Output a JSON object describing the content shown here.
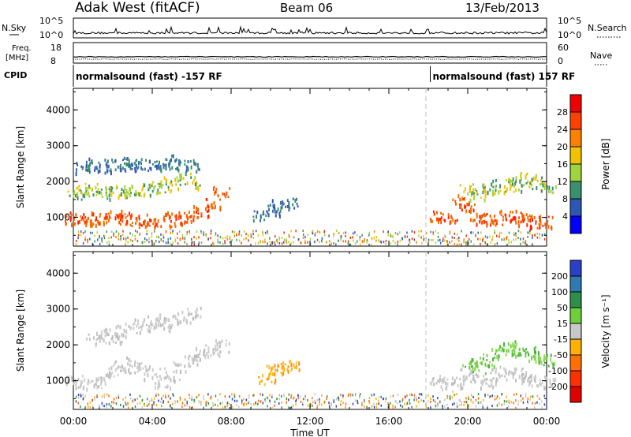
{
  "header": {
    "station": "Adak West (fitACF)",
    "beam": "Beam 06",
    "date": "13/Feb/2013"
  },
  "strip": {
    "nsky_label": "N.Sky",
    "nsky_ticks": [
      "10^5",
      "10^0"
    ],
    "nsearch_label": "N.Search",
    "nsearch_ticks": [
      "10^5",
      "10^0"
    ],
    "freq_label_1": "Freq.",
    "freq_label_2": "[MHz]",
    "freq_ticks": [
      "18",
      "8"
    ],
    "nave_label": "Nave",
    "nave_ticks": [
      "60",
      "0"
    ],
    "cpid_label": "CPID",
    "cpid_segments": [
      {
        "text": "normalsound (fast) -157 RF",
        "start_hour": 0
      },
      {
        "text": "normalsound (fast) 157 RF",
        "start_hour": 18.1
      }
    ]
  },
  "chart_data": [
    {
      "type": "heatmap",
      "panel": "power",
      "ylabel": "Slant Range [km]",
      "xlabel": "",
      "ylim": [
        200,
        4600
      ],
      "yticks": [
        "1000",
        "2000",
        "3000",
        "4000"
      ],
      "xlim_hours": [
        0,
        24
      ],
      "colorbar": {
        "title": "Power [dB]",
        "ticks": [
          "4",
          "8",
          "12",
          "16",
          "20",
          "24",
          "28"
        ],
        "colors": [
          "#0000ff",
          "#2e56b5",
          "#3a8f6e",
          "#9ed43c",
          "#f2c200",
          "#ff8000",
          "#ff4000",
          "#f00000"
        ]
      },
      "series": [
        {
          "x": [
            0.0,
            0.5,
            1.0,
            1.5,
            2.0,
            2.5,
            3.0,
            3.5,
            4.0,
            4.5,
            5.0,
            5.5,
            6.0,
            6.5,
            7.0,
            7.5
          ],
          "y": [
            1000,
            950,
            1000,
            980,
            1050,
            1000,
            950,
            900,
            950,
            900,
            1000,
            950,
            1050,
            1200,
            1400,
            1700
          ],
          "level": "max"
        },
        {
          "x": [
            0.0,
            0.5,
            1.0,
            1.5,
            2.0,
            2.5,
            3.0,
            3.5,
            4.0,
            4.5,
            5.0,
            5.5,
            6.0
          ],
          "y": [
            1700,
            1750,
            1800,
            1700,
            1750,
            1800,
            1750,
            1800,
            1850,
            1900,
            2000,
            2100,
            2000
          ],
          "level": "mid"
        },
        {
          "x": [
            0.5,
            1.0,
            1.5,
            2.0,
            2.5,
            3.0,
            3.5,
            4.0,
            4.5,
            5.0,
            5.5,
            6.0
          ],
          "y": [
            2400,
            2500,
            2450,
            2500,
            2550,
            2450,
            2500,
            2450,
            2550,
            2600,
            2500,
            2450
          ],
          "level": "low"
        },
        {
          "x": [
            9.5,
            10.0,
            10.5,
            11.0
          ],
          "y": [
            1100,
            1250,
            1350,
            1450
          ],
          "level": "low"
        },
        {
          "x": [
            18.5,
            19.0,
            19.5,
            20.0,
            20.5,
            21.0,
            21.5,
            22.0,
            22.5,
            23.0,
            23.5,
            24.0
          ],
          "y": [
            1100,
            1000,
            1500,
            1300,
            1000,
            950,
            1000,
            1050,
            1000,
            950,
            900,
            900
          ],
          "level": "max"
        },
        {
          "x": [
            20.0,
            20.5,
            21.0,
            21.5,
            22.0,
            22.5,
            23.0,
            23.5,
            24.0
          ],
          "y": [
            1800,
            1700,
            1800,
            1900,
            2000,
            1900,
            2100,
            2000,
            1900
          ],
          "level": "mid"
        }
      ]
    },
    {
      "type": "heatmap",
      "panel": "velocity",
      "ylabel": "Slant Range [km]",
      "xlabel": "Time UT",
      "ylim": [
        200,
        4600
      ],
      "yticks": [
        "1000",
        "2000",
        "3000",
        "4000"
      ],
      "xticks": [
        "00:00",
        "04:00",
        "08:00",
        "12:00",
        "16:00",
        "20:00",
        "00:00"
      ],
      "xlim_hours": [
        0,
        24
      ],
      "colorbar": {
        "title": "Velocity [m s⁻¹]",
        "ticks": [
          "200",
          "100",
          "50",
          "15",
          "-15",
          "-50",
          "-100",
          "-200"
        ],
        "colors": [
          "#2a40c8",
          "#2f7ab0",
          "#2e8f4a",
          "#6ecf3c",
          "#c8c8c8",
          "#ffb000",
          "#ff7000",
          "#ff3000",
          "#e00000"
        ]
      },
      "series": [
        {
          "x": [
            0.0,
            0.5,
            1.0,
            1.5,
            2.0,
            2.5,
            3.0,
            3.5,
            4.0,
            4.5,
            5.0,
            5.5,
            6.0,
            6.5,
            7.0,
            7.5
          ],
          "y": [
            1000,
            950,
            1000,
            1100,
            1300,
            1400,
            1500,
            1400,
            1200,
            1000,
            1200,
            1400,
            1600,
            1800,
            1900,
            2000
          ],
          "level": "zero"
        },
        {
          "x": [
            1.0,
            1.5,
            2.0,
            2.5,
            3.0,
            3.5,
            4.0,
            4.5,
            5.0,
            5.5,
            6.0
          ],
          "y": [
            2200,
            2300,
            2200,
            2400,
            2500,
            2600,
            2700,
            2600,
            2700,
            2800,
            2900
          ],
          "level": "zero"
        },
        {
          "x": [
            9.8,
            10.2,
            10.6,
            11.0
          ],
          "y": [
            1100,
            1300,
            1400,
            1500
          ],
          "level": "neg"
        },
        {
          "x": [
            18.5,
            19.0,
            19.5,
            20.0,
            20.5,
            21.0,
            21.5,
            22.0,
            22.5,
            23.0,
            23.5,
            24.0
          ],
          "y": [
            1000,
            900,
            1000,
            1200,
            1100,
            1000,
            1200,
            1300,
            1200,
            1100,
            1000,
            1000
          ],
          "level": "zero"
        },
        {
          "x": [
            20.0,
            20.5,
            21.0,
            21.5,
            22.0,
            22.5,
            23.0,
            23.5,
            24.0
          ],
          "y": [
            1500,
            1400,
            1600,
            1800,
            2000,
            1900,
            1800,
            1700,
            1600
          ],
          "level": "pos"
        }
      ]
    }
  ]
}
